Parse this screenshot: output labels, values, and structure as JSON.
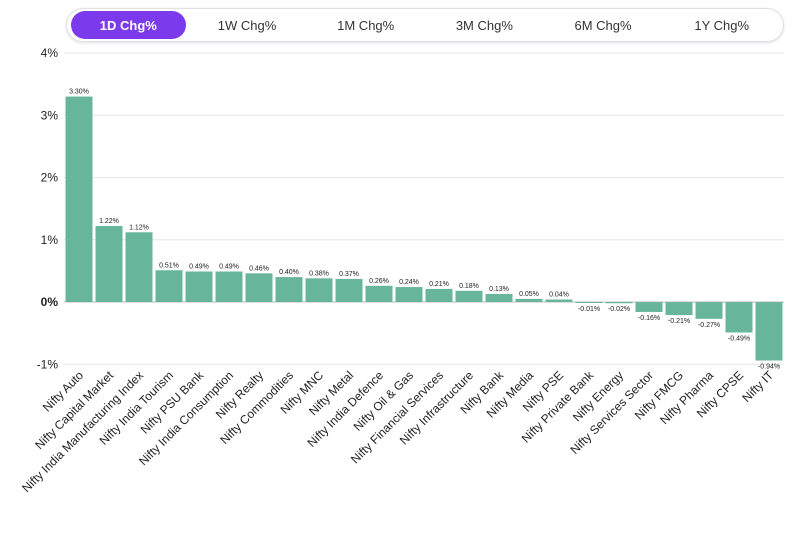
{
  "tabs": [
    {
      "label": "1D Chg%",
      "active": true
    },
    {
      "label": "1W Chg%",
      "active": false
    },
    {
      "label": "1M Chg%",
      "active": false
    },
    {
      "label": "3M Chg%",
      "active": false
    },
    {
      "label": "6M Chg%",
      "active": false
    },
    {
      "label": "1Y Chg%",
      "active": false
    }
  ],
  "colors": {
    "accent": "#7c3aed",
    "bar": "#67b59b"
  },
  "chart_data": {
    "type": "bar",
    "categories": [
      "Nifty Auto",
      "Nifty Capital Market",
      "Nifty India Manufacturing Index",
      "Nifty India Tourism",
      "Nifty PSU Bank",
      "Nifty India Consumption",
      "Nifty Realty",
      "Nifty Commodities",
      "Nifty MNC",
      "Nifty Metal",
      "Nifty India Defence",
      "Nifty Oil & Gas",
      "Nifty Financial Services",
      "Nifty Infrastructure",
      "Nifty Bank",
      "Nifty Media",
      "Nifty PSE",
      "Nifty Private Bank",
      "Nifty Energy",
      "Nifty Services Sector",
      "Nifty FMCG",
      "Nifty Pharma",
      "Nifty CPSE",
      "Nifty IT"
    ],
    "values": [
      3.3,
      1.22,
      1.12,
      0.51,
      0.49,
      0.49,
      0.46,
      0.4,
      0.38,
      0.37,
      0.26,
      0.24,
      0.21,
      0.18,
      0.13,
      0.05,
      0.04,
      -0.01,
      -0.02,
      -0.16,
      -0.21,
      -0.27,
      -0.49,
      -0.94
    ],
    "data_labels": [
      "3.30%",
      "1.22%",
      "1.12%",
      "0.51%",
      "0.49%",
      "0.49%",
      "0.46%",
      "0.40%",
      "0.38%",
      "0.37%",
      "0.26%",
      "0.24%",
      "0.21%",
      "0.18%",
      "0.13%",
      "0.05%",
      "0.04%",
      "-0.01%",
      "-0.02%",
      "-0.16%",
      "-0.21%",
      "-0.27%",
      "-0.49%",
      "-0.94%"
    ],
    "yticks": [
      -1,
      0,
      1,
      2,
      3,
      4
    ],
    "ytick_labels": [
      "-1%",
      "0%",
      "1%",
      "2%",
      "3%",
      "4%"
    ],
    "ylim": [
      -1,
      4
    ],
    "grid": true,
    "legend": "none"
  }
}
